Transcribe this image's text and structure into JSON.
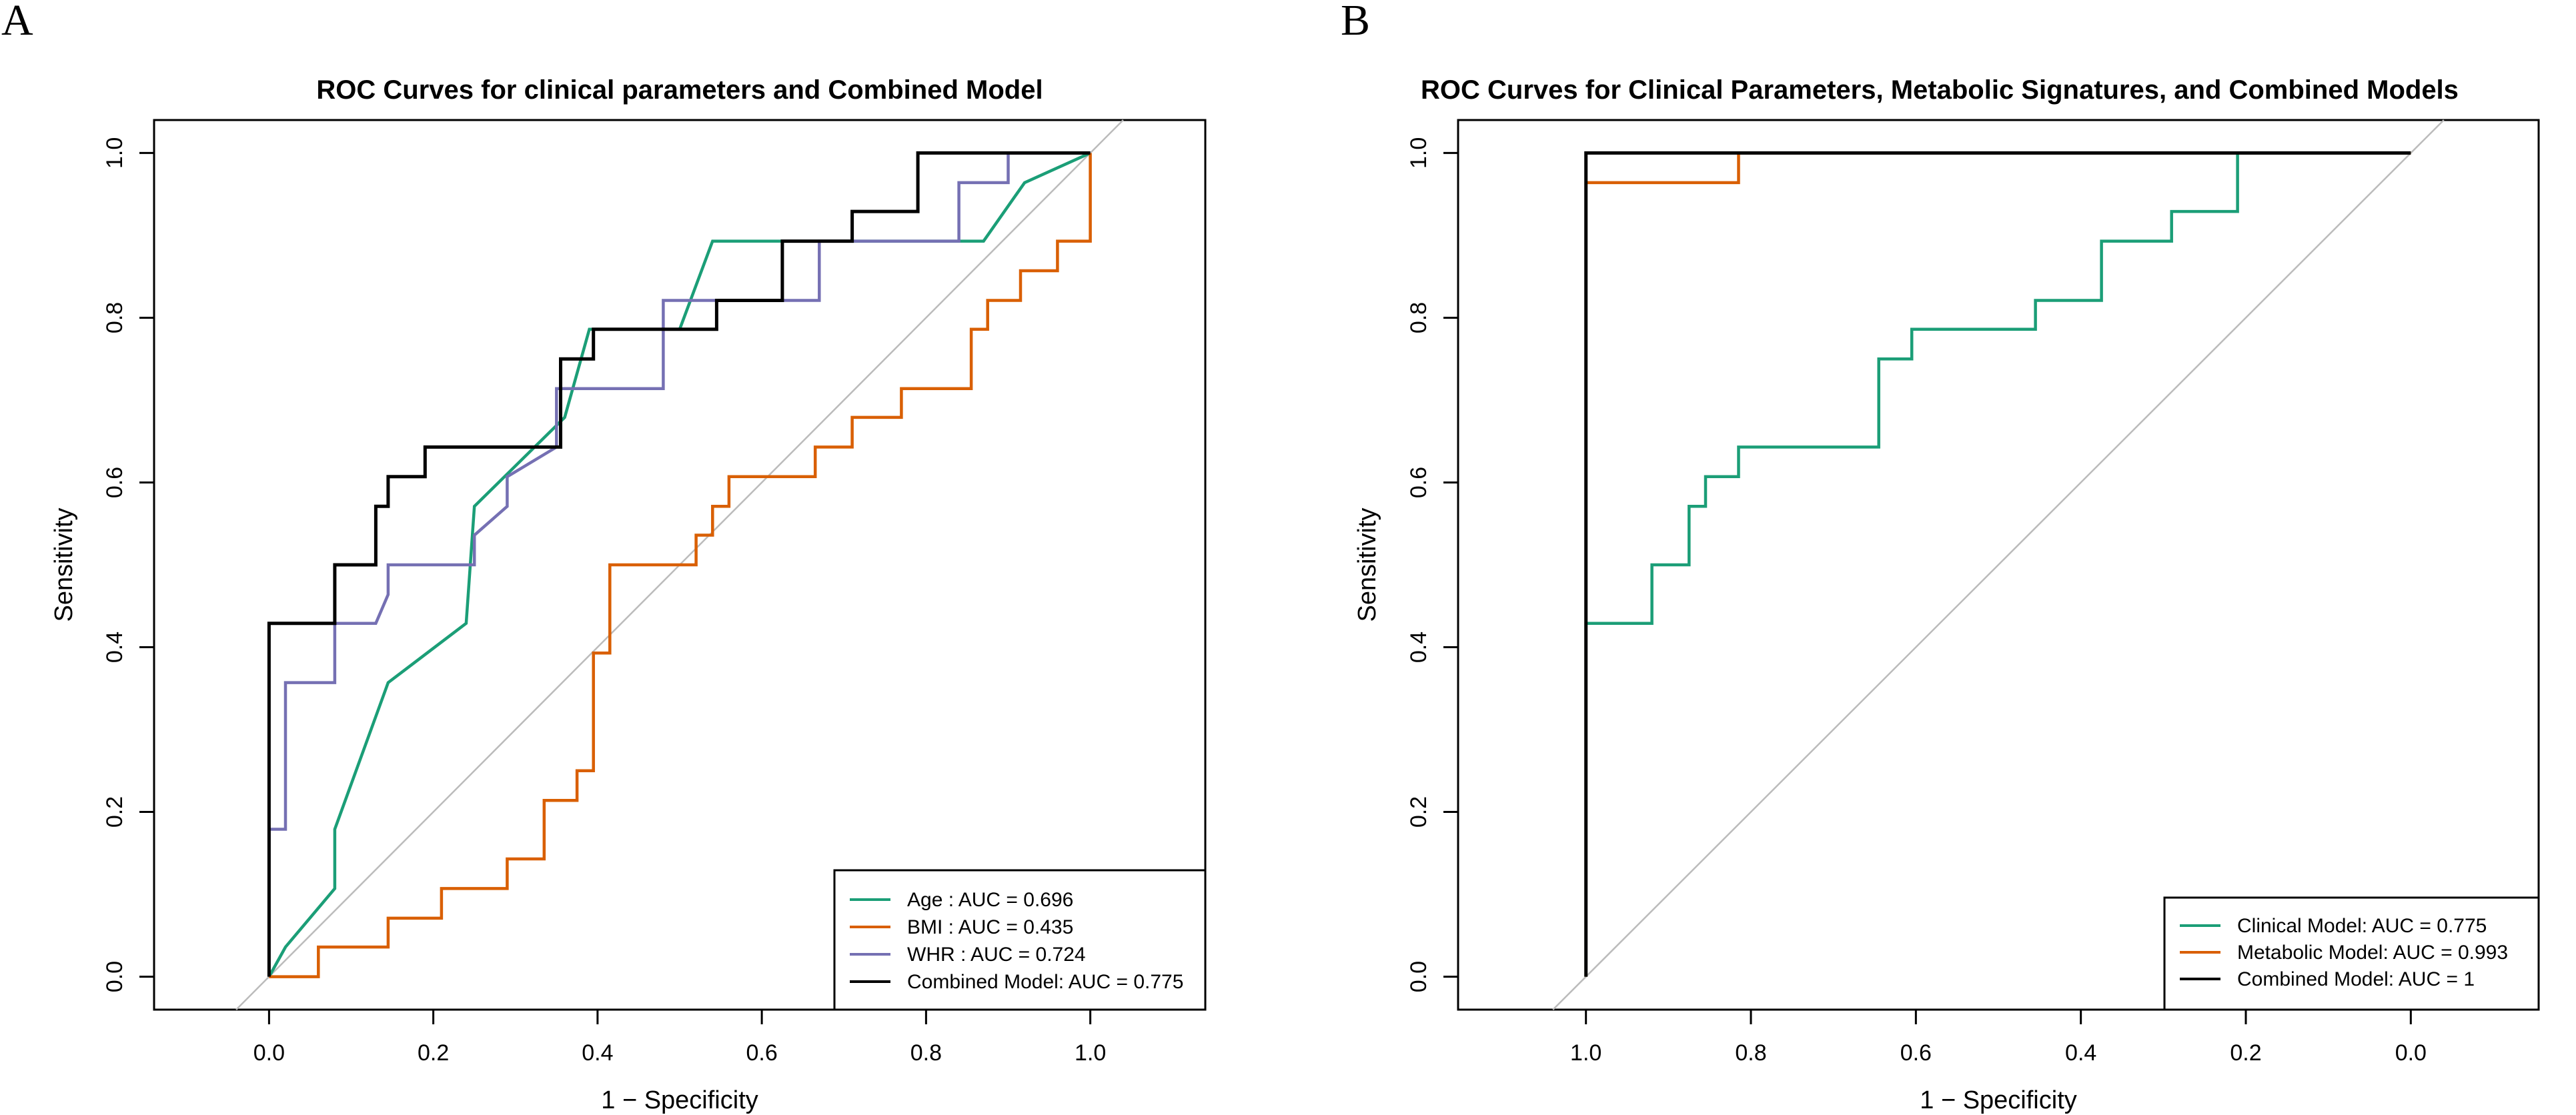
{
  "figure": {
    "panel_letters": [
      "A",
      "B"
    ]
  },
  "chart_data": [
    {
      "type": "line",
      "panel": "A",
      "title": "ROC Curves for clinical parameters and Combined Model",
      "xlabel": "1 − Specificity",
      "ylabel": "Sensitivity",
      "xlim": [
        -0.14,
        1.14
      ],
      "ylim": [
        -0.04,
        1.04
      ],
      "x_reversed": false,
      "xticks": [
        0.0,
        0.2,
        0.4,
        0.6,
        0.8,
        1.0
      ],
      "xtick_labels": [
        "0.0",
        "0.2",
        "0.4",
        "0.6",
        "0.8",
        "1.0"
      ],
      "yticks": [
        0.0,
        0.2,
        0.4,
        0.6,
        0.8,
        1.0
      ],
      "ytick_labels": [
        "0.0",
        "0.2",
        "0.4",
        "0.6",
        "0.8",
        "1.0"
      ],
      "diagonal": [
        [
          -0.04,
          -0.04
        ],
        [
          1.04,
          1.04
        ]
      ],
      "legend_position": "bottom-right",
      "series": [
        {
          "name": "Age : AUC = 0.696",
          "color": "#1b9e77",
          "x": [
            0,
            0.02,
            0.08,
            0.08,
            0.145,
            0.24,
            0.25,
            0.36,
            0.39,
            0.5,
            0.54,
            0.87,
            0.92,
            1.0
          ],
          "y": [
            0,
            0.036,
            0.107,
            0.179,
            0.357,
            0.429,
            0.571,
            0.679,
            0.786,
            0.786,
            0.893,
            0.893,
            0.964,
            1.0
          ]
        },
        {
          "name": "BMI : AUC = 0.435",
          "color": "#d95f02",
          "x": [
            0,
            0.06,
            0.06,
            0.145,
            0.145,
            0.21,
            0.21,
            0.29,
            0.29,
            0.335,
            0.335,
            0.375,
            0.375,
            0.395,
            0.395,
            0.415,
            0.415,
            0.52,
            0.52,
            0.54,
            0.54,
            0.56,
            0.56,
            0.58,
            0.58,
            0.665,
            0.665,
            0.71,
            0.71,
            0.77,
            0.77,
            0.855,
            0.855,
            0.875,
            0.875,
            0.915,
            0.915,
            0.96,
            0.96,
            1.0,
            1.0
          ],
          "y": [
            0,
            0,
            0.036,
            0.036,
            0.071,
            0.071,
            0.107,
            0.107,
            0.143,
            0.143,
            0.214,
            0.214,
            0.25,
            0.25,
            0.393,
            0.393,
            0.5,
            0.5,
            0.536,
            0.536,
            0.571,
            0.571,
            0.607,
            0.607,
            0.607,
            0.607,
            0.643,
            0.643,
            0.679,
            0.679,
            0.714,
            0.714,
            0.786,
            0.786,
            0.821,
            0.821,
            0.857,
            0.857,
            0.893,
            0.893,
            1.0
          ]
        },
        {
          "name": "WHR : AUC = 0.724",
          "color": "#7570b3",
          "x": [
            0,
            0.0,
            0.02,
            0.02,
            0.08,
            0.08,
            0.13,
            0.145,
            0.145,
            0.25,
            0.25,
            0.29,
            0.29,
            0.35,
            0.35,
            0.48,
            0.48,
            0.67,
            0.67,
            0.84,
            0.84,
            0.9,
            0.9,
            1.0
          ],
          "y": [
            0,
            0.179,
            0.179,
            0.357,
            0.357,
            0.429,
            0.429,
            0.464,
            0.5,
            0.5,
            0.536,
            0.571,
            0.607,
            0.643,
            0.714,
            0.714,
            0.821,
            0.821,
            0.893,
            0.893,
            0.964,
            0.964,
            1.0,
            1.0
          ]
        },
        {
          "name": "Combined Model: AUC = 0.775",
          "color": "#000000",
          "x": [
            0,
            0.0,
            0.08,
            0.08,
            0.13,
            0.13,
            0.145,
            0.145,
            0.19,
            0.19,
            0.355,
            0.355,
            0.395,
            0.395,
            0.545,
            0.545,
            0.625,
            0.625,
            0.71,
            0.71,
            0.79,
            0.79,
            1.0
          ],
          "y": [
            0,
            0.429,
            0.429,
            0.5,
            0.5,
            0.571,
            0.571,
            0.607,
            0.607,
            0.643,
            0.643,
            0.75,
            0.75,
            0.786,
            0.786,
            0.821,
            0.821,
            0.893,
            0.893,
            0.929,
            0.929,
            1.0,
            1.0
          ]
        }
      ]
    },
    {
      "type": "line",
      "panel": "B",
      "title": "ROC Curves for Clinical Parameters, Metabolic Signatures, and Combined Models",
      "xlabel": "1 − Specificity",
      "ylabel": "Sensitivity",
      "xlim": [
        1.155,
        -0.155
      ],
      "ylim": [
        -0.04,
        1.04
      ],
      "x_reversed": true,
      "xticks": [
        1.0,
        0.8,
        0.6,
        0.4,
        0.2,
        0.0
      ],
      "xtick_labels": [
        "1.0",
        "0.8",
        "0.6",
        "0.4",
        "0.2",
        "0.0"
      ],
      "yticks": [
        0.0,
        0.2,
        0.4,
        0.6,
        0.8,
        1.0
      ],
      "ytick_labels": [
        "0.0",
        "0.2",
        "0.4",
        "0.6",
        "0.8",
        "1.0"
      ],
      "diagonal": [
        [
          1.04,
          -0.04
        ],
        [
          -0.04,
          1.04
        ]
      ],
      "legend_position": "bottom-right",
      "series": [
        {
          "name": "Clinical Model: AUC = 0.775",
          "color": "#1b9e77",
          "x": [
            1.0,
            1.0,
            0.92,
            0.92,
            0.875,
            0.875,
            0.855,
            0.855,
            0.815,
            0.815,
            0.645,
            0.645,
            0.605,
            0.605,
            0.455,
            0.455,
            0.375,
            0.375,
            0.29,
            0.29,
            0.21,
            0.21,
            0.0
          ],
          "y": [
            0,
            0.429,
            0.429,
            0.5,
            0.5,
            0.571,
            0.571,
            0.607,
            0.607,
            0.643,
            0.643,
            0.75,
            0.75,
            0.786,
            0.786,
            0.821,
            0.821,
            0.893,
            0.893,
            0.929,
            0.929,
            1.0,
            1.0
          ]
        },
        {
          "name": "Metabolic Model: AUC = 0.993",
          "color": "#d95f02",
          "x": [
            1.0,
            1.0,
            0.815,
            0.815,
            0.0
          ],
          "y": [
            0,
            0.964,
            0.964,
            1.0,
            1.0
          ]
        },
        {
          "name": "Combined Model: AUC = 1",
          "color": "#000000",
          "x": [
            1.0,
            1.0,
            0.0
          ],
          "y": [
            0,
            1.0,
            1.0
          ]
        }
      ]
    }
  ]
}
